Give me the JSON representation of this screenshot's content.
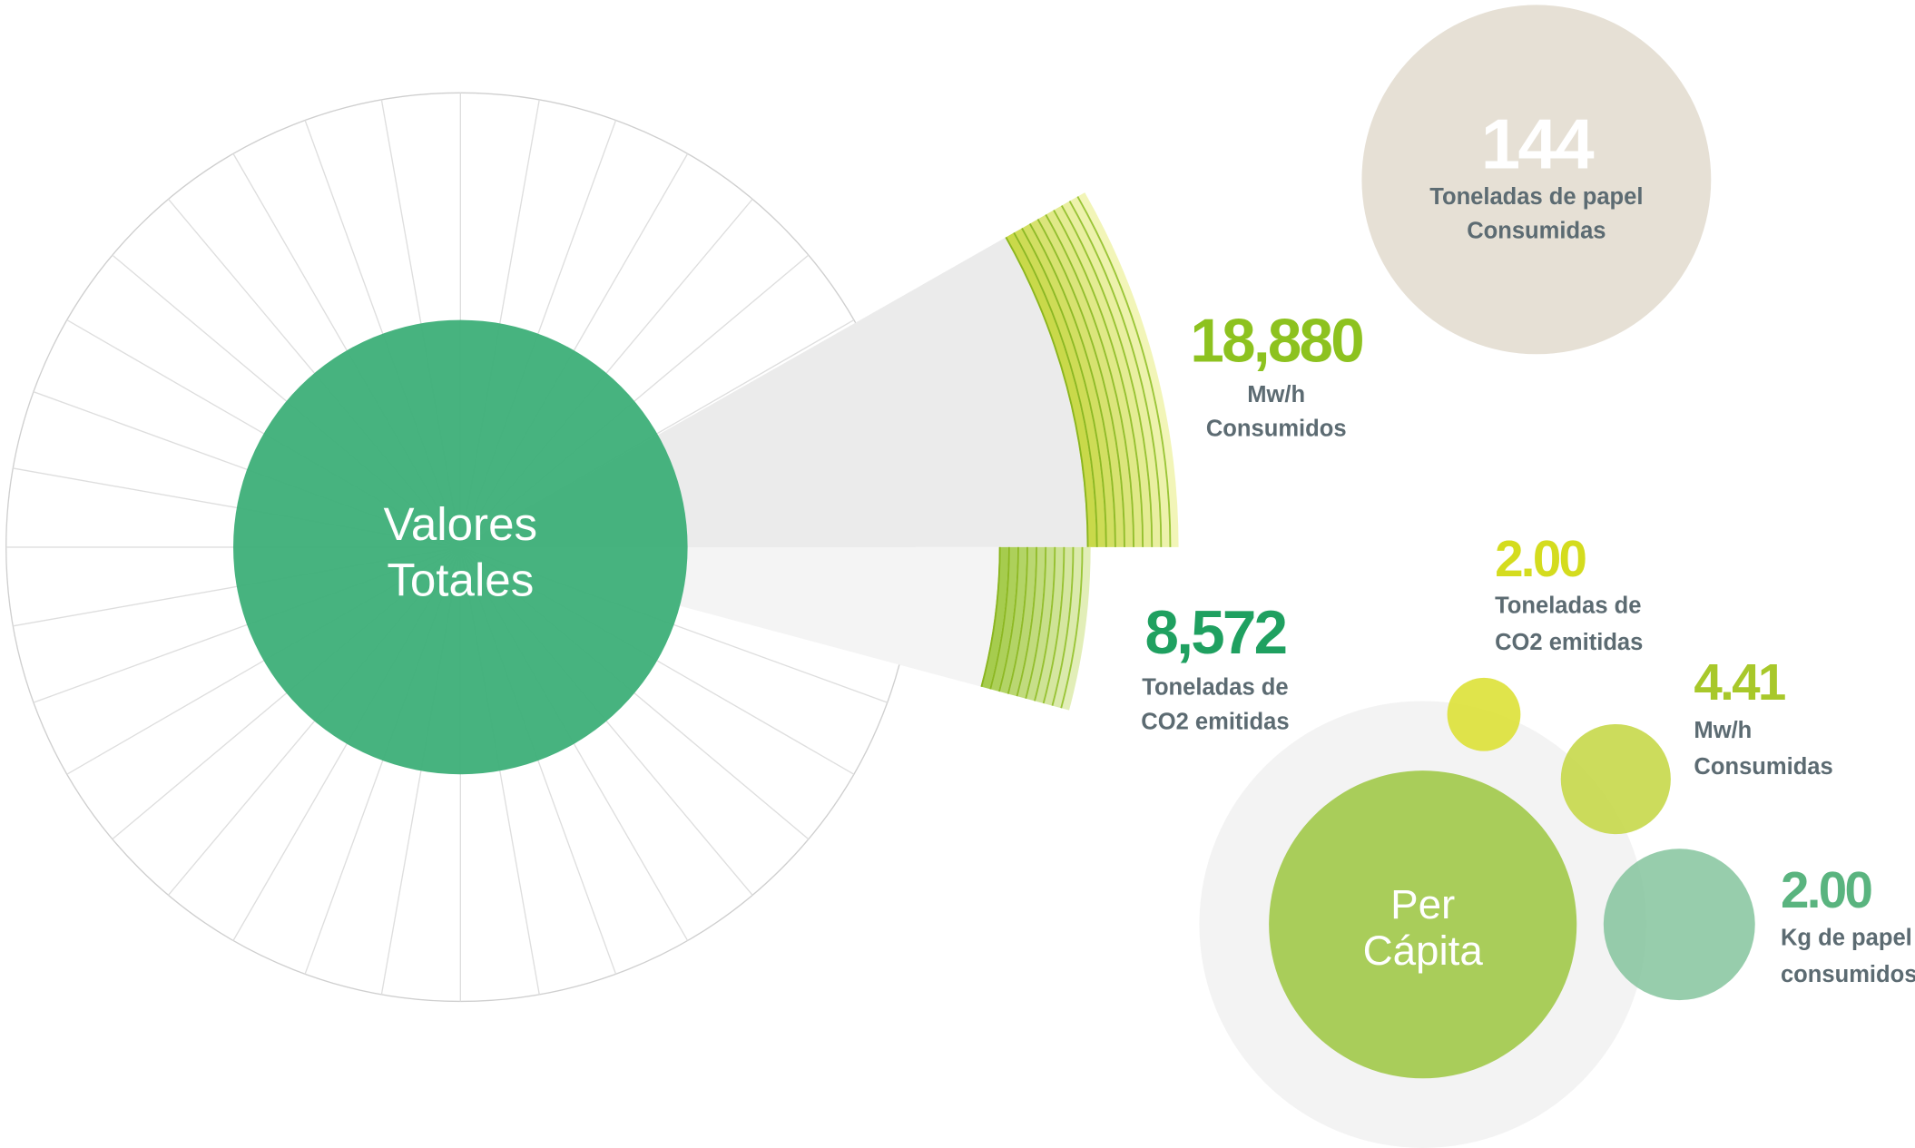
{
  "totals": {
    "title": [
      "Valores",
      "Totales"
    ],
    "energy": {
      "value": "18,880",
      "label": [
        "Mw/h",
        "Consumidos"
      ]
    },
    "co2": {
      "value": "8,572",
      "label": [
        "Toneladas de",
        "CO2 emitidas"
      ]
    }
  },
  "paper": {
    "value": "144",
    "label": [
      "Toneladas de papel",
      "Consumidas"
    ]
  },
  "per_capita": {
    "title": [
      "Per",
      "Cápita"
    ],
    "co2": {
      "value": "2.00",
      "label": [
        "Toneladas de",
        "CO2 emitidas"
      ]
    },
    "energy": {
      "value": "4.41",
      "label": [
        "Mw/h",
        "Consumidas"
      ]
    },
    "paper": {
      "value": "2.00",
      "label": [
        "Kg de papel",
        "consumidos"
      ]
    }
  }
}
